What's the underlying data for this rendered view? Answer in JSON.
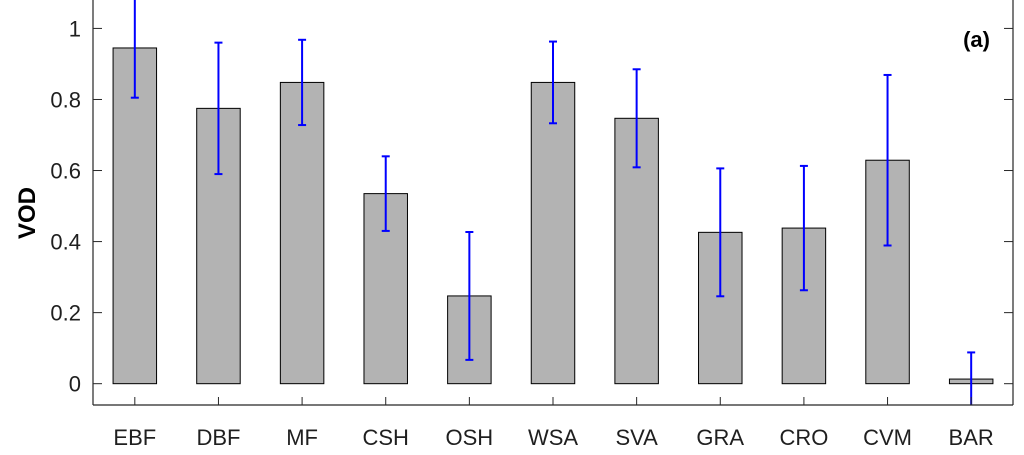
{
  "chart_data": {
    "type": "bar",
    "title": "",
    "xlabel": "",
    "ylabel": "VOD",
    "panel_label": "(a)",
    "categories": [
      "EBF",
      "DBF",
      "MF",
      "CSH",
      "OSH",
      "WSA",
      "SVA",
      "GRA",
      "CRO",
      "CVM",
      "BAR"
    ],
    "values": [
      0.945,
      0.775,
      0.848,
      0.535,
      0.247,
      0.848,
      0.747,
      0.426,
      0.438,
      0.629,
      0.013
    ],
    "error": [
      0.14,
      0.185,
      0.12,
      0.105,
      0.18,
      0.115,
      0.138,
      0.18,
      0.175,
      0.24,
      0.075
    ],
    "ylim": [
      -0.06,
      1.08
    ],
    "yticks": [
      0,
      0.2,
      0.4,
      0.6,
      0.8,
      1
    ],
    "ytick_labels": [
      "0",
      "0.2",
      "0.4",
      "0.6",
      "0.8",
      "1"
    ],
    "grid": false,
    "colors": {
      "bar_fill": "#b3b3b3",
      "bar_edge": "#000000",
      "error_bar": "#0000ff",
      "axis": "#262626"
    }
  }
}
